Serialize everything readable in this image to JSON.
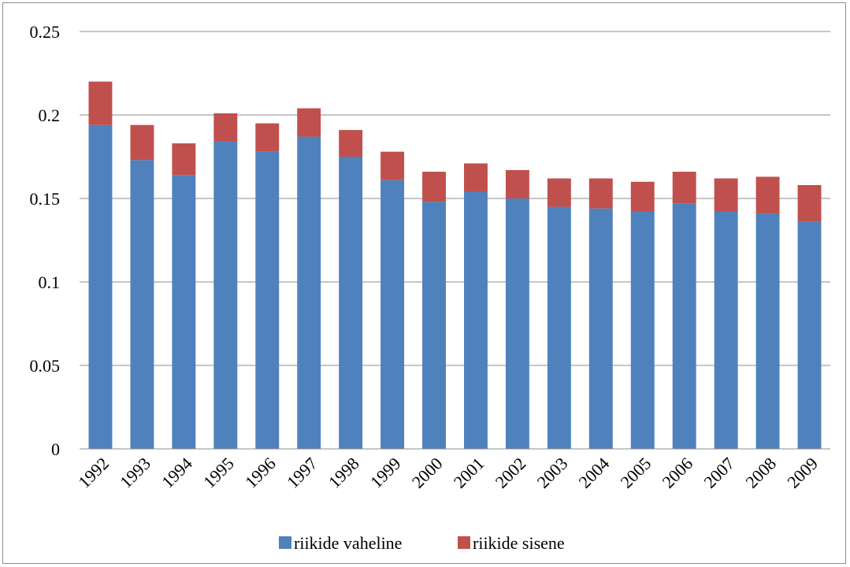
{
  "chart_data": {
    "type": "bar",
    "stacked": true,
    "title": "",
    "xlabel": "",
    "ylabel": "",
    "ylim": [
      0,
      0.25
    ],
    "yticks": [
      "0",
      "0.05",
      "0.1",
      "0.15",
      "0.2",
      "0.25"
    ],
    "grid": true,
    "legend_position": "bottom",
    "categories": [
      "1992",
      "1993",
      "1994",
      "1995",
      "1996",
      "1997",
      "1998",
      "1999",
      "2000",
      "2001",
      "2002",
      "2003",
      "2004",
      "2005",
      "2006",
      "2007",
      "2008",
      "2009"
    ],
    "series": [
      {
        "name": "riikide vaheline",
        "color": "#4f81bd",
        "values": [
          0.194,
          0.173,
          0.164,
          0.184,
          0.178,
          0.187,
          0.175,
          0.161,
          0.148,
          0.154,
          0.15,
          0.145,
          0.144,
          0.142,
          0.147,
          0.142,
          0.141,
          0.136
        ]
      },
      {
        "name": "riikide sisene",
        "color": "#c0504d",
        "values": [
          0.026,
          0.021,
          0.019,
          0.017,
          0.017,
          0.017,
          0.016,
          0.017,
          0.018,
          0.017,
          0.017,
          0.017,
          0.018,
          0.018,
          0.019,
          0.02,
          0.022,
          0.022
        ]
      }
    ]
  }
}
